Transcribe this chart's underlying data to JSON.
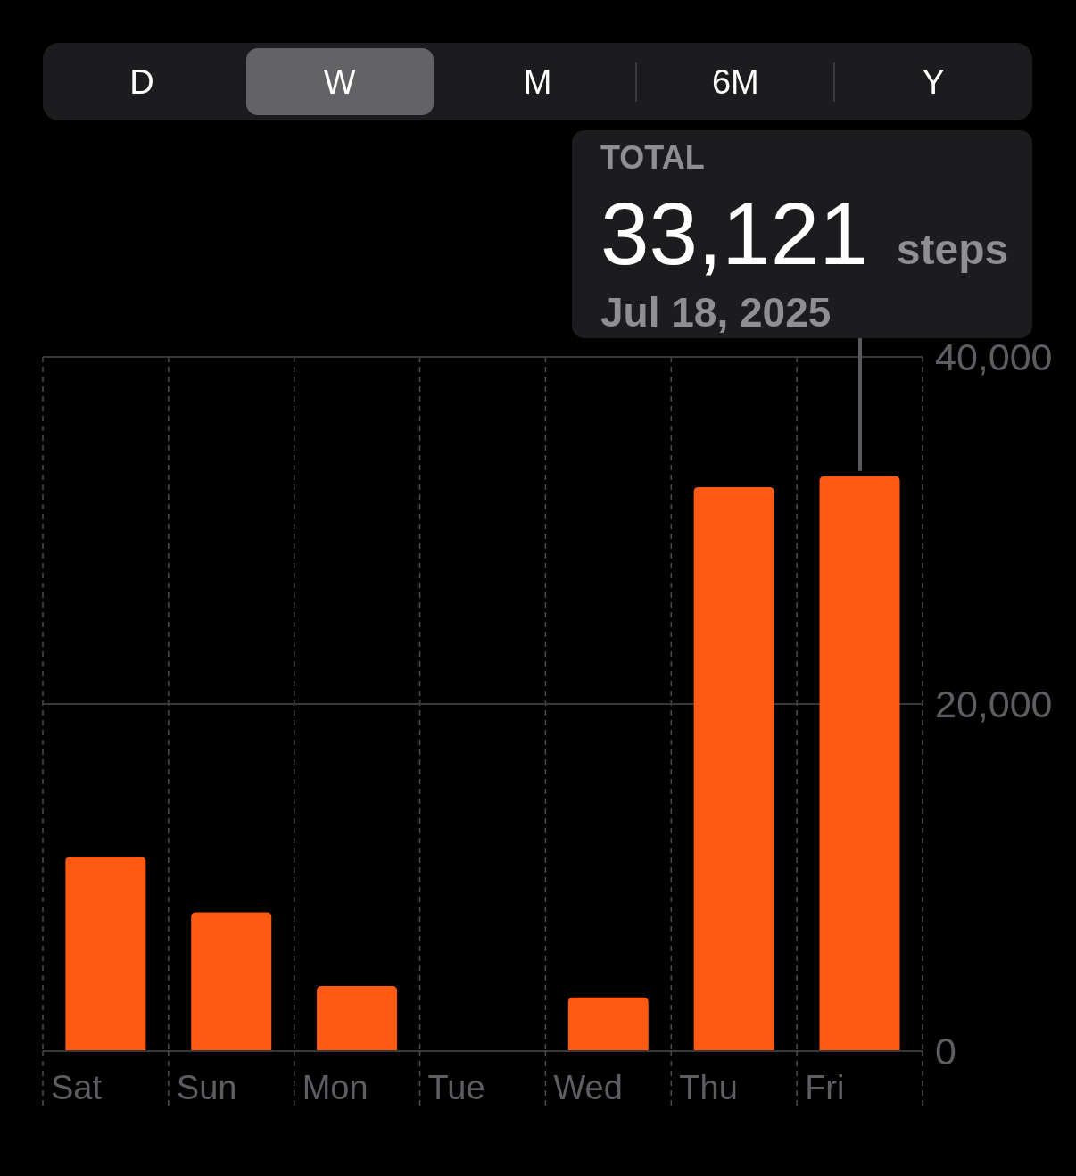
{
  "chart_data": [
    {
      "type": "other",
      "annotations": [
        "D",
        "W",
        "M",
        "6M",
        "Y"
      ]
    },
    {
      "type": "bar",
      "categories": [
        "Sat",
        "Sun",
        "Mon",
        "Tue",
        "Wed",
        "Thu",
        "Fri"
      ],
      "values": [
        11200,
        8000,
        3750,
        0,
        3100,
        32500,
        33121
      ],
      "color": "#ff5a14",
      "ylim": [
        0,
        40000
      ],
      "yticks": [
        0,
        {
          "value": 20000,
          "label": "20,000"
        },
        {
          "value": 40000,
          "label": "40,000"
        }
      ],
      "grid": true,
      "annotations": [
        "TOTAL",
        {
          "text": "33,121",
          "x": "Fri",
          "y": 33121
        },
        "steps",
        "Jul 18, 2025"
      ]
    }
  ]
}
